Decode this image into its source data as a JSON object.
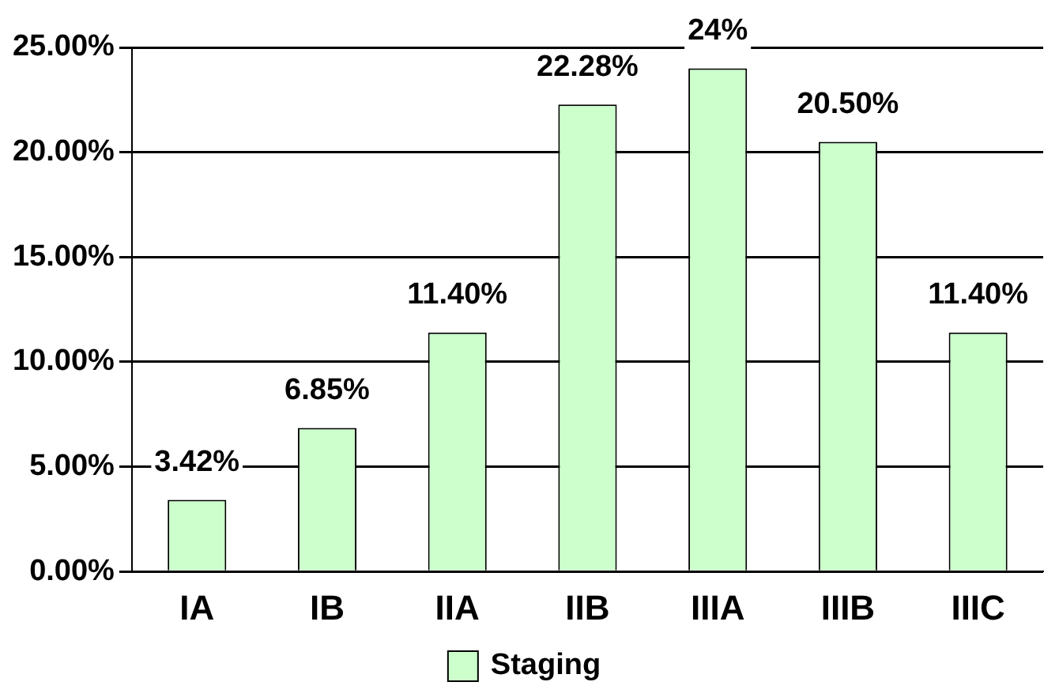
{
  "chart_data": {
    "type": "bar",
    "categories": [
      "IA",
      "IB",
      "IIA",
      "IIB",
      "IIIA",
      "IIIB",
      "IIIC"
    ],
    "series": [
      {
        "name": "Staging",
        "color": "#ccffcc",
        "values": [
          3.42,
          6.85,
          11.4,
          22.28,
          24,
          20.5,
          11.4
        ],
        "value_labels": [
          "3.42%",
          "6.85%",
          "11.40%",
          "22.28%",
          "24%",
          "20.50%",
          "11.40%"
        ]
      }
    ],
    "ylim": [
      0,
      25
    ],
    "yticks": [
      {
        "value": 0,
        "label": "0.00%"
      },
      {
        "value": 5,
        "label": "5.00%"
      },
      {
        "value": 10,
        "label": "10.00%"
      },
      {
        "value": 15,
        "label": "15.00%"
      },
      {
        "value": 20,
        "label": "20.00%"
      },
      {
        "value": 25,
        "label": "25.00%"
      }
    ],
    "grid": "y",
    "legend": "bottom"
  }
}
